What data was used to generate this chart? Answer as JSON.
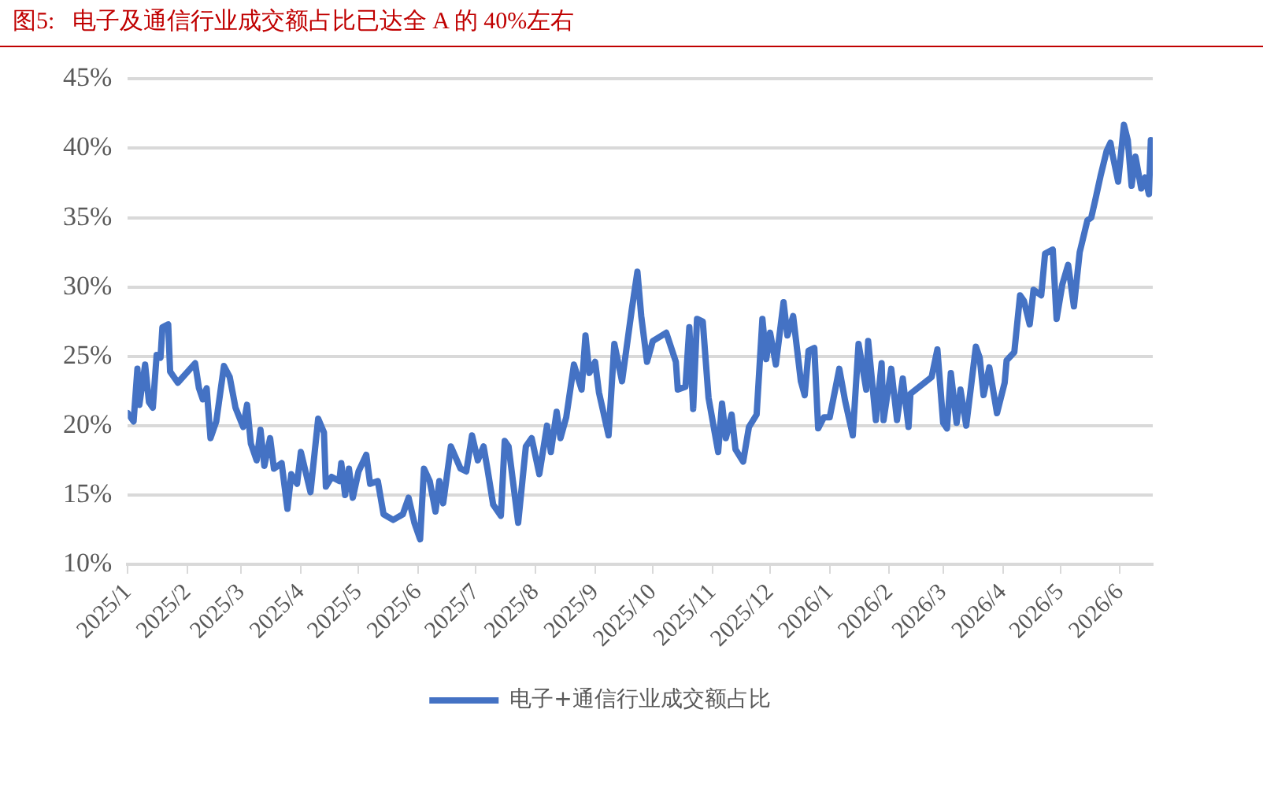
{
  "chart_data": {
    "type": "line",
    "title": "图5:   电子及通信行业成交额占比已达全 A 的 40%左右",
    "x": [
      "2025-01-01",
      "2025-01-04",
      "2025-01-06",
      "2025-01-07",
      "2025-01-10",
      "2025-01-12",
      "2025-01-14",
      "2025-01-16",
      "2025-01-18",
      "2025-01-19",
      "2025-01-22",
      "2025-01-23",
      "2025-01-27",
      "2025-02-05",
      "2025-02-07",
      "2025-02-09",
      "2025-02-11",
      "2025-02-13",
      "2025-02-16",
      "2025-02-20",
      "2025-02-23",
      "2025-02-26",
      "2025-03-02",
      "2025-03-04",
      "2025-03-06",
      "2025-03-09",
      "2025-03-11",
      "2025-03-13",
      "2025-03-16",
      "2025-03-18",
      "2025-03-22",
      "2025-03-25",
      "2025-03-27",
      "2025-03-30",
      "2025-04-01",
      "2025-04-06",
      "2025-04-10",
      "2025-04-13",
      "2025-04-14",
      "2025-04-17",
      "2025-04-21",
      "2025-04-22",
      "2025-04-24",
      "2025-04-26",
      "2025-04-28",
      "2025-05-01",
      "2025-05-05",
      "2025-05-07",
      "2025-05-11",
      "2025-05-14",
      "2025-05-19",
      "2025-05-24",
      "2025-05-27",
      "2025-05-30",
      "2025-06-02",
      "2025-06-04",
      "2025-06-07",
      "2025-06-10",
      "2025-06-12",
      "2025-06-14",
      "2025-06-18",
      "2025-06-23",
      "2025-06-26",
      "2025-06-29",
      "2025-07-02",
      "2025-07-05",
      "2025-07-07",
      "2025-07-10",
      "2025-07-14",
      "2025-07-16",
      "2025-07-18",
      "2025-07-23",
      "2025-07-27",
      "2025-07-30",
      "2025-08-03",
      "2025-08-07",
      "2025-08-09",
      "2025-08-12",
      "2025-08-14",
      "2025-08-17",
      "2025-08-21",
      "2025-08-25",
      "2025-08-27",
      "2025-08-29",
      "2025-09-01",
      "2025-09-03",
      "2025-09-08",
      "2025-09-11",
      "2025-09-15",
      "2025-09-20",
      "2025-09-23",
      "2025-09-25",
      "2025-09-28",
      "2025-10-01",
      "2025-10-08",
      "2025-10-13",
      "2025-10-14",
      "2025-10-18",
      "2025-10-20",
      "2025-10-22",
      "2025-10-24",
      "2025-10-27",
      "2025-10-30",
      "2025-11-04",
      "2025-11-06",
      "2025-11-08",
      "2025-11-11",
      "2025-11-13",
      "2025-11-17",
      "2025-11-20",
      "2025-11-24",
      "2025-11-27",
      "2025-11-29",
      "2025-12-01",
      "2025-12-04",
      "2025-12-08",
      "2025-12-10",
      "2025-12-13",
      "2025-12-17",
      "2025-12-19",
      "2025-12-21",
      "2025-12-24",
      "2025-12-26",
      "2025-12-29",
      "2026-01-01",
      "2026-01-06",
      "2026-01-09",
      "2026-01-13",
      "2026-01-16",
      "2026-01-20",
      "2026-01-21",
      "2026-01-25",
      "2026-01-28",
      "2026-01-29",
      "2026-02-02",
      "2026-02-05",
      "2026-02-08",
      "2026-02-11",
      "2026-02-12",
      "2026-02-23",
      "2026-02-26",
      "2026-03-01",
      "2026-03-03",
      "2026-03-05",
      "2026-03-08",
      "2026-03-10",
      "2026-03-13",
      "2026-03-18",
      "2026-03-20",
      "2026-03-22",
      "2026-03-25",
      "2026-03-29",
      "2026-04-02",
      "2026-04-03",
      "2026-04-07",
      "2026-04-10",
      "2026-04-12",
      "2026-04-15",
      "2026-04-17",
      "2026-04-21",
      "2026-04-23",
      "2026-04-27",
      "2026-04-29",
      "2026-05-02",
      "2026-05-05",
      "2026-05-08",
      "2026-05-11",
      "2026-05-15",
      "2026-05-17",
      "2026-05-19",
      "2026-05-22",
      "2026-05-25",
      "2026-05-27",
      "2026-05-28",
      "2026-05-31",
      "2026-06-03",
      "2026-06-05",
      "2026-06-07",
      "2026-06-09",
      "2026-06-12",
      "2026-06-14",
      "2026-06-16",
      "2026-06-17"
    ],
    "series": [
      {
        "name": "电子+通信行业成交额占比",
        "color": "#4472c4",
        "values": [
          20.9,
          20.3,
          24.1,
          21.5,
          24.4,
          21.7,
          21.3,
          25.1,
          24.9,
          27.1,
          27.3,
          23.9,
          23.1,
          24.5,
          22.7,
          21.9,
          22.7,
          19.1,
          20.3,
          24.3,
          23.5,
          21.3,
          19.9,
          21.5,
          18.7,
          17.5,
          19.7,
          17.1,
          19.1,
          16.9,
          17.3,
          14.0,
          16.5,
          15.8,
          18.1,
          15.2,
          20.5,
          19.5,
          15.6,
          16.3,
          16.0,
          17.3,
          15.0,
          16.9,
          14.8,
          16.7,
          17.9,
          15.8,
          16.0,
          13.6,
          13.2,
          13.6,
          14.8,
          13.0,
          11.8,
          16.9,
          16.0,
          13.8,
          16.0,
          14.4,
          18.5,
          16.9,
          16.7,
          19.3,
          17.5,
          18.5,
          16.9,
          14.3,
          13.5,
          18.9,
          18.5,
          13.0,
          18.5,
          19.1,
          16.5,
          20.0,
          18.1,
          21.0,
          19.1,
          20.6,
          24.4,
          22.6,
          26.5,
          23.8,
          24.6,
          22.4,
          19.3,
          25.9,
          23.2,
          28.3,
          31.1,
          27.9,
          24.6,
          26.1,
          26.7,
          24.6,
          22.6,
          22.8,
          27.1,
          21.2,
          27.7,
          27.5,
          22.0,
          18.1,
          21.6,
          19.1,
          20.8,
          18.3,
          17.4,
          19.9,
          20.8,
          27.7,
          24.8,
          26.7,
          24.4,
          28.9,
          26.5,
          27.9,
          23.2,
          22.2,
          25.4,
          25.6,
          19.8,
          20.6,
          20.6,
          24.1,
          21.8,
          19.3,
          25.9,
          22.6,
          26.1,
          20.4,
          24.5,
          20.4,
          24.1,
          20.4,
          23.4,
          19.9,
          22.3,
          23.5,
          25.5,
          20.2,
          19.8,
          23.8,
          20.2,
          22.6,
          20.0,
          25.7,
          24.9,
          22.2,
          24.2,
          20.9,
          23.1,
          24.7,
          25.3,
          29.4,
          29.0,
          27.3,
          29.8,
          29.4,
          32.4,
          32.7,
          27.7,
          30.2,
          31.6,
          28.6,
          32.5,
          34.8,
          35.0,
          36.2,
          38.1,
          39.8,
          40.4,
          39.6,
          37.6,
          41.7,
          40.6,
          37.3,
          39.4,
          37.1,
          37.9,
          36.7,
          40.6
        ]
      }
    ],
    "xlim": [
      "2025-01-01",
      "2026-06-18"
    ],
    "xticks": [
      {
        "value": "2025-01-01",
        "label": "2025/1"
      },
      {
        "value": "2025-02-01",
        "label": "2025/2"
      },
      {
        "value": "2025-03-01",
        "label": "2025/3"
      },
      {
        "value": "2025-04-01",
        "label": "2025/4"
      },
      {
        "value": "2025-05-01",
        "label": "2025/5"
      },
      {
        "value": "2025-06-01",
        "label": "2025/6"
      },
      {
        "value": "2025-07-01",
        "label": "2025/7"
      },
      {
        "value": "2025-08-01",
        "label": "2025/8"
      },
      {
        "value": "2025-09-01",
        "label": "2025/9"
      },
      {
        "value": "2025-10-01",
        "label": "2025/10"
      },
      {
        "value": "2025-11-01",
        "label": "2025/11"
      },
      {
        "value": "2025-12-01",
        "label": "2025/12"
      },
      {
        "value": "2026-01-01",
        "label": "2026/1"
      },
      {
        "value": "2026-02-01",
        "label": "2026/2"
      },
      {
        "value": "2026-03-01",
        "label": "2026/3"
      },
      {
        "value": "2026-04-01",
        "label": "2026/4"
      },
      {
        "value": "2026-05-01",
        "label": "2026/5"
      },
      {
        "value": "2026-06-01",
        "label": "2026/6"
      }
    ],
    "ylim": [
      10,
      45
    ],
    "yticks": [
      {
        "value": 10,
        "label": "10%"
      },
      {
        "value": 15,
        "label": "15%"
      },
      {
        "value": 20,
        "label": "20%"
      },
      {
        "value": 25,
        "label": "25%"
      },
      {
        "value": 30,
        "label": "30%"
      },
      {
        "value": 35,
        "label": "35%"
      },
      {
        "value": 40,
        "label": "40%"
      },
      {
        "value": 45,
        "label": "45%"
      }
    ],
    "grid": "y",
    "legend": "bottom",
    "marker": "none",
    "line_style": "solid"
  }
}
